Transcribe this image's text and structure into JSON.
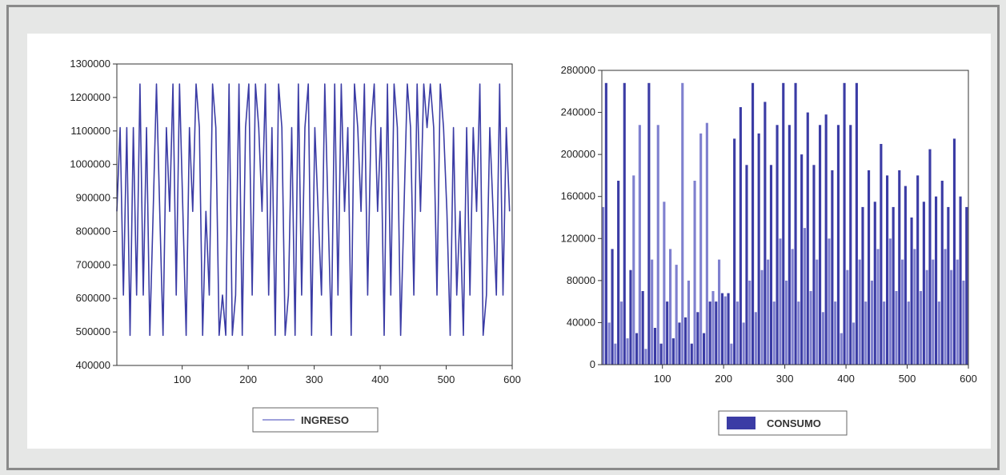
{
  "colors": {
    "series": "#3b3ca5",
    "series_light": "#7f80cf",
    "axis": "#333333",
    "frame": "#8a8a8a",
    "panel": "#ffffff",
    "background": "#e6e7e6"
  },
  "chart_data": [
    {
      "type": "line",
      "title": "",
      "xlabel": "",
      "ylabel": "",
      "xlim": [
        1,
        600
      ],
      "ylim": [
        400000,
        1300000
      ],
      "x_ticks": [
        100,
        200,
        300,
        400,
        500,
        600
      ],
      "y_ticks": [
        400000,
        500000,
        600000,
        700000,
        800000,
        900000,
        1000000,
        1100000,
        1200000,
        1300000
      ],
      "y_tick_labels": [
        "400000",
        "500000",
        "600000",
        "700000",
        "800000",
        "900000",
        "1000000",
        "1100000",
        "1200000",
        "1300000"
      ],
      "grid": false,
      "legend_position": "bottom-center",
      "series": [
        {
          "name": "INGRESO",
          "sample_step": 5,
          "values": [
            860000,
            1110000,
            610000,
            1110000,
            490000,
            1110000,
            610000,
            1240000,
            610000,
            1110000,
            490000,
            860000,
            1240000,
            860000,
            490000,
            1110000,
            860000,
            1240000,
            610000,
            1240000,
            860000,
            490000,
            1110000,
            860000,
            1240000,
            1110000,
            490000,
            860000,
            610000,
            1240000,
            1110000,
            490000,
            610000,
            490000,
            1240000,
            490000,
            610000,
            1240000,
            490000,
            1110000,
            1240000,
            610000,
            1240000,
            1110000,
            860000,
            1240000,
            610000,
            1110000,
            490000,
            1240000,
            1110000,
            490000,
            610000,
            1110000,
            490000,
            1240000,
            610000,
            1110000,
            1240000,
            490000,
            1110000,
            860000,
            610000,
            1240000,
            860000,
            490000,
            1240000,
            610000,
            1240000,
            860000,
            1110000,
            490000,
            1240000,
            1110000,
            860000,
            1240000,
            610000,
            1110000,
            1240000,
            860000,
            1110000,
            490000,
            1240000,
            610000,
            1240000,
            1110000,
            490000,
            860000,
            1240000,
            1110000,
            610000,
            1240000,
            860000,
            1240000,
            1110000,
            1240000,
            1110000,
            610000,
            1240000,
            1110000,
            860000,
            490000,
            1110000,
            610000,
            860000,
            490000,
            1110000,
            610000,
            1110000,
            860000,
            1240000,
            490000,
            610000,
            1110000,
            860000,
            610000,
            1240000,
            610000,
            1110000,
            860000
          ]
        }
      ]
    },
    {
      "type": "bar",
      "title": "",
      "xlabel": "",
      "ylabel": "",
      "xlim": [
        1,
        600
      ],
      "ylim": [
        0,
        280000
      ],
      "x_ticks": [
        100,
        200,
        300,
        400,
        500,
        600
      ],
      "y_ticks": [
        0,
        40000,
        80000,
        120000,
        160000,
        200000,
        240000,
        280000
      ],
      "y_tick_labels": [
        "0",
        "40000",
        "80000",
        "120000",
        "160000",
        "200000",
        "240000",
        "280000"
      ],
      "grid": false,
      "legend_position": "bottom-center",
      "series": [
        {
          "name": "CONSUMO",
          "sample_step": 5,
          "values": [
            150000,
            268000,
            40000,
            110000,
            20000,
            175000,
            60000,
            268000,
            25000,
            90000,
            180000,
            30000,
            228000,
            70000,
            15000,
            268000,
            100000,
            35000,
            228000,
            20000,
            155000,
            60000,
            110000,
            25000,
            95000,
            40000,
            268000,
            45000,
            80000,
            20000,
            175000,
            50000,
            220000,
            30000,
            230000,
            60000,
            70000,
            60000,
            100000,
            68000,
            65000,
            68000,
            20000,
            215000,
            60000,
            245000,
            40000,
            190000,
            80000,
            268000,
            50000,
            220000,
            90000,
            250000,
            100000,
            190000,
            60000,
            228000,
            120000,
            268000,
            80000,
            228000,
            110000,
            268000,
            60000,
            200000,
            130000,
            240000,
            70000,
            190000,
            100000,
            228000,
            50000,
            238000,
            120000,
            185000,
            60000,
            228000,
            30000,
            268000,
            90000,
            228000,
            40000,
            268000,
            100000,
            150000,
            60000,
            185000,
            80000,
            155000,
            110000,
            210000,
            60000,
            180000,
            120000,
            150000,
            70000,
            185000,
            100000,
            170000,
            60000,
            140000,
            110000,
            180000,
            70000,
            155000,
            90000,
            205000,
            100000,
            160000,
            60000,
            175000,
            110000,
            150000,
            90000,
            215000,
            100000,
            160000,
            80000,
            150000
          ]
        }
      ]
    }
  ]
}
